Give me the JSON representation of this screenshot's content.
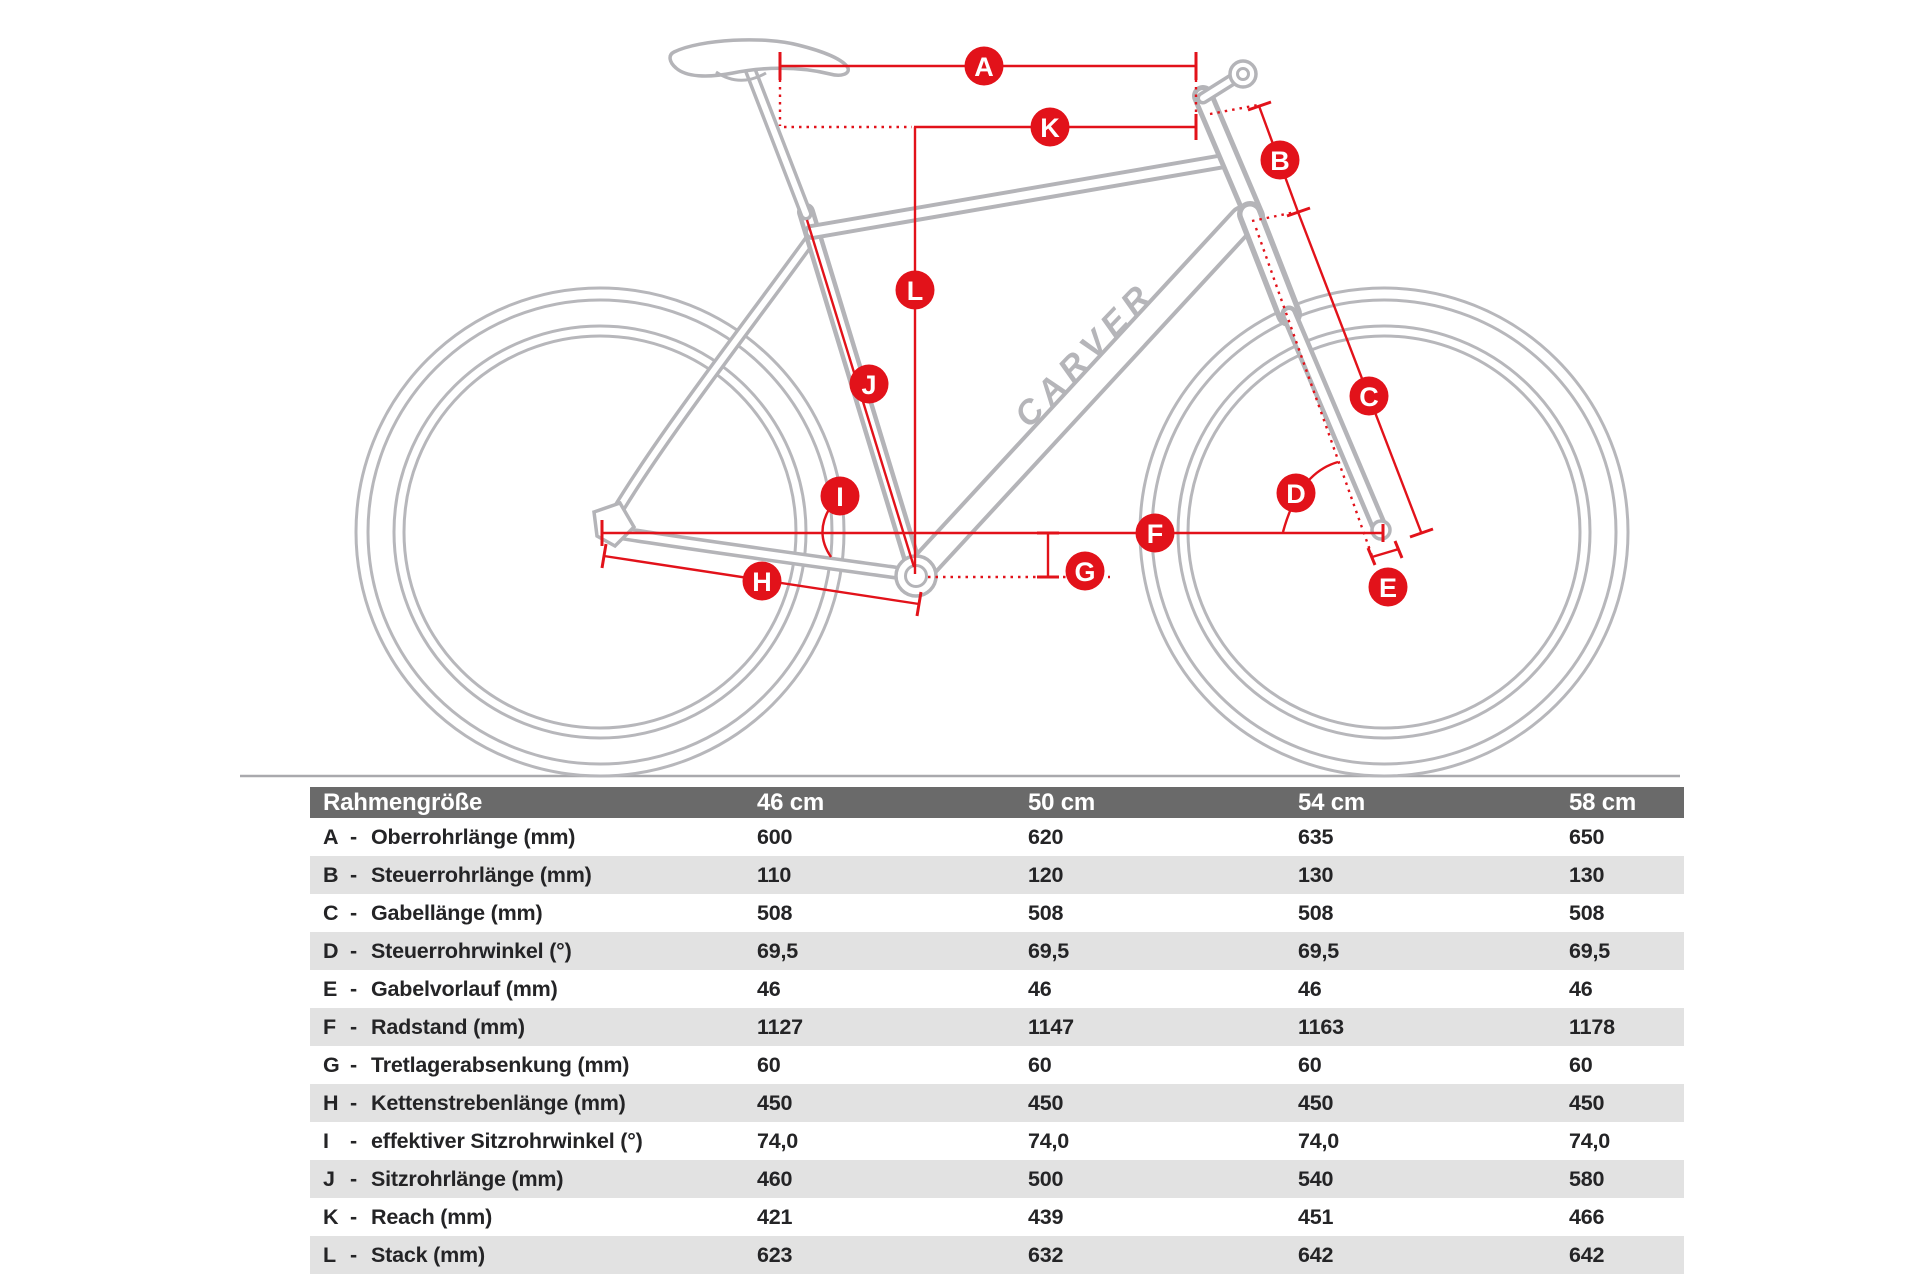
{
  "diagram": {
    "brand": "CARVER",
    "labels": [
      "A",
      "B",
      "C",
      "D",
      "E",
      "F",
      "G",
      "H",
      "I",
      "J",
      "K",
      "L"
    ]
  },
  "table": {
    "dash": "-",
    "header": {
      "label": "Rahmengröße",
      "cols": [
        "46 cm",
        "50 cm",
        "54 cm",
        "58 cm"
      ]
    },
    "rows": [
      {
        "key": "A",
        "label": "Oberrohrlänge (mm)",
        "values": [
          "600",
          "620",
          "635",
          "650"
        ]
      },
      {
        "key": "B",
        "label": "Steuerrohrlänge (mm)",
        "values": [
          "110",
          "120",
          "130",
          "130"
        ]
      },
      {
        "key": "C",
        "label": "Gabellänge (mm)",
        "values": [
          "508",
          "508",
          "508",
          "508"
        ]
      },
      {
        "key": "D",
        "label": "Steuerrohrwinkel (°)",
        "values": [
          "69,5",
          "69,5",
          "69,5",
          "69,5"
        ]
      },
      {
        "key": "E",
        "label": "Gabelvorlauf (mm)",
        "values": [
          "46",
          "46",
          "46",
          "46"
        ]
      },
      {
        "key": "F",
        "label": "Radstand (mm)",
        "values": [
          "1127",
          "1147",
          "1163",
          "1178"
        ]
      },
      {
        "key": "G",
        "label": "Tretlagerabsenkung (mm)",
        "values": [
          "60",
          "60",
          "60",
          "60"
        ]
      },
      {
        "key": "H",
        "label": "Kettenstrebenlänge (mm)",
        "values": [
          "450",
          "450",
          "450",
          "450"
        ]
      },
      {
        "key": "I",
        "label": "effektiver Sitzrohrwinkel (°)",
        "values": [
          "74,0",
          "74,0",
          "74,0",
          "74,0"
        ]
      },
      {
        "key": "J",
        "label": "Sitzrohrlänge (mm)",
        "values": [
          "460",
          "500",
          "540",
          "580"
        ]
      },
      {
        "key": "K",
        "label": "Reach (mm)",
        "values": [
          "421",
          "439",
          "451",
          "466"
        ]
      },
      {
        "key": "L",
        "label": "Stack (mm)",
        "values": [
          "623",
          "632",
          "642",
          "642"
        ]
      }
    ]
  },
  "colors": {
    "accent_red": "#e2121a",
    "header_bg": "#6a6a6a",
    "row_alt": "#e2e2e2",
    "lineart_gray": "#b4b4b8"
  }
}
